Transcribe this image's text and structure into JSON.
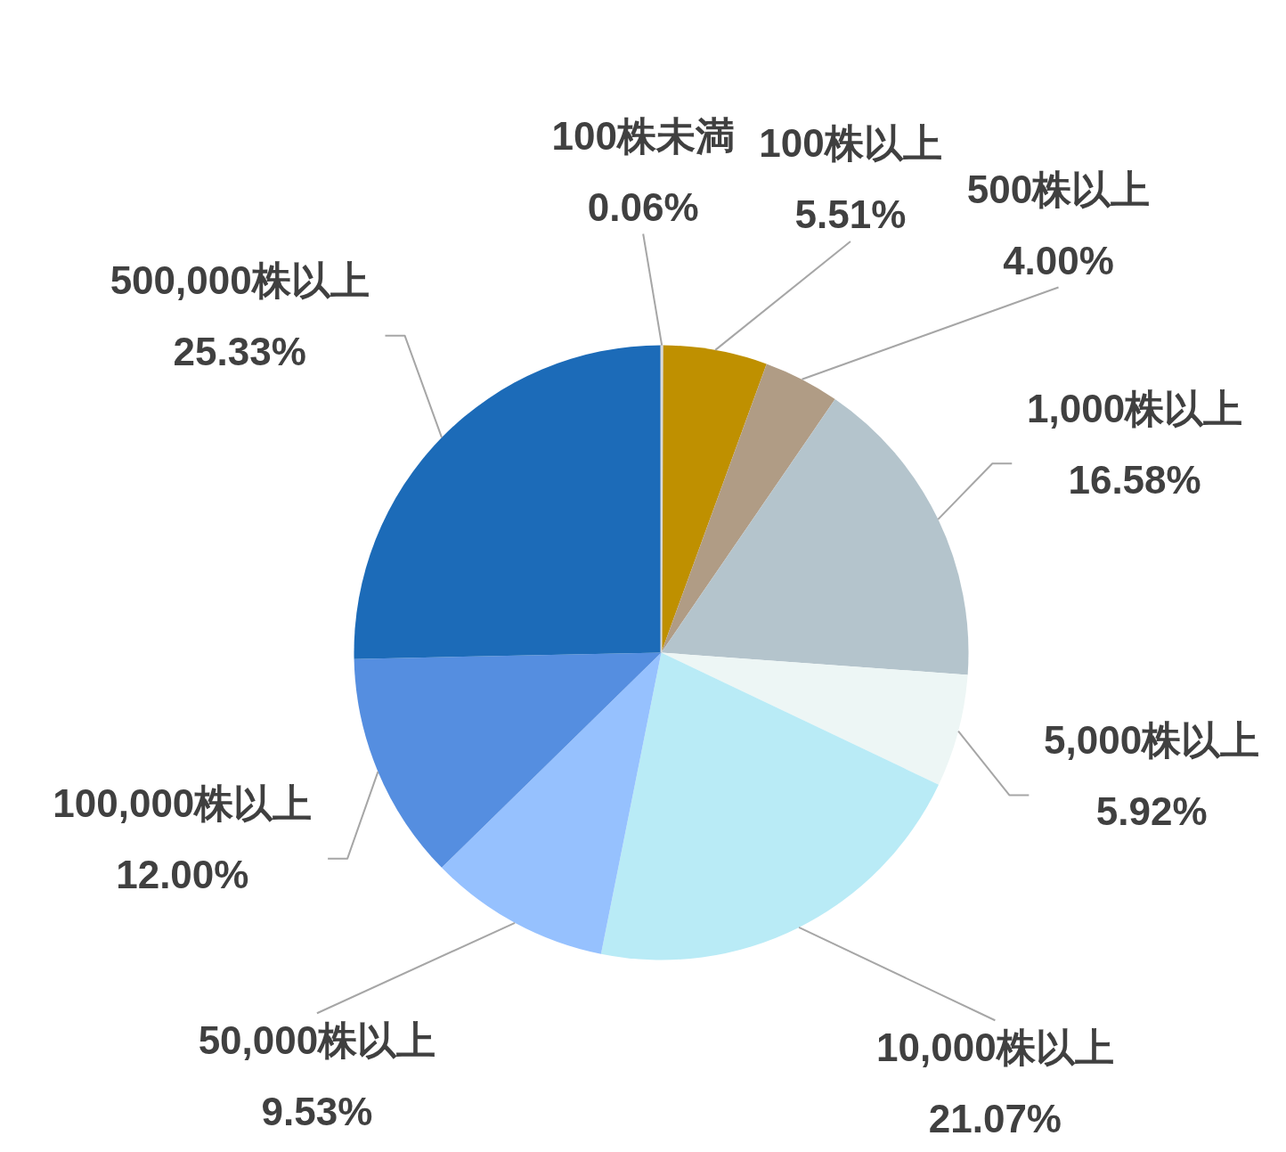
{
  "chart_data": {
    "type": "pie",
    "categories": [
      "100株未満",
      "100株以上",
      "500株以上",
      "1,000株以上",
      "5,000株以上",
      "10,000株以上",
      "50,000株以上",
      "100,000株以上",
      "500,000株以上"
    ],
    "values": [
      0.06,
      5.51,
      4.0,
      16.58,
      5.92,
      21.07,
      9.53,
      12.0,
      25.33
    ],
    "value_labels": [
      "0.06%",
      "5.51%",
      "4.00%",
      "16.58%",
      "5.92%",
      "21.07%",
      "9.53%",
      "12.00%",
      "25.33%"
    ],
    "colors": [
      "#d9d9d9",
      "#bf9000",
      "#b09c85",
      "#b4c4cc",
      "#edf6f5",
      "#b9ebf6",
      "#96c1fe",
      "#558ee0",
      "#1c6bb8"
    ]
  }
}
